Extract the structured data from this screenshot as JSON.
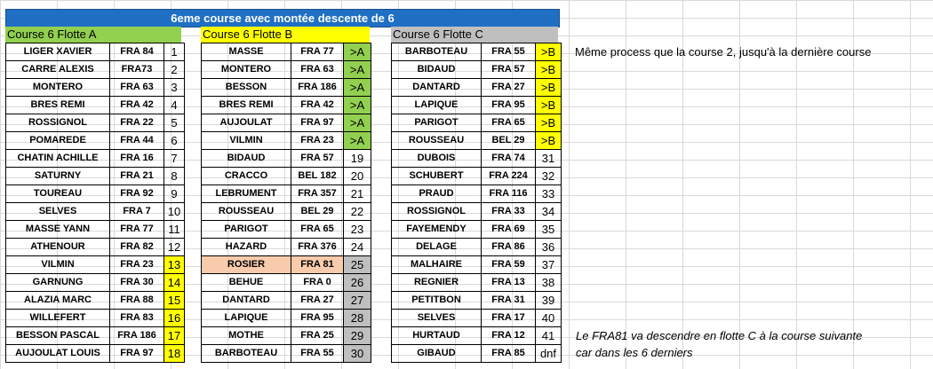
{
  "title": "6eme course avec montée descente de 6",
  "fleets": {
    "A": {
      "header": "Course 6 Flotte A",
      "rows": [
        {
          "name": "LIGER XAVIER",
          "sail": "FRA 84",
          "rank": "1",
          "bg": ""
        },
        {
          "name": "CARRE ALEXIS",
          "sail": "FRA73",
          "rank": "2",
          "bg": ""
        },
        {
          "name": "MONTERO",
          "sail": "FRA 63",
          "rank": "3",
          "bg": ""
        },
        {
          "name": "BRES REMI",
          "sail": "FRA 42",
          "rank": "4",
          "bg": ""
        },
        {
          "name": "ROSSIGNOL",
          "sail": "FRA 22",
          "rank": "5",
          "bg": ""
        },
        {
          "name": "POMAREDE",
          "sail": "FRA 44",
          "rank": "6",
          "bg": ""
        },
        {
          "name": "CHATIN ACHILLE",
          "sail": "FRA 16",
          "rank": "7",
          "bg": ""
        },
        {
          "name": "SATURNY",
          "sail": "FRA 21",
          "rank": "8",
          "bg": ""
        },
        {
          "name": "TOUREAU",
          "sail": "FRA 92",
          "rank": "9",
          "bg": ""
        },
        {
          "name": "SELVES",
          "sail": "FRA 7",
          "rank": "10",
          "bg": ""
        },
        {
          "name": "MASSE YANN",
          "sail": "FRA 77",
          "rank": "11",
          "bg": ""
        },
        {
          "name": "ATHENOUR",
          "sail": "FRA 82",
          "rank": "12",
          "bg": ""
        },
        {
          "name": "VILMIN",
          "sail": "FRA 23",
          "rank": "13",
          "bg": "yellow"
        },
        {
          "name": "GARNUNG",
          "sail": "FRA 30",
          "rank": "14",
          "bg": "yellow"
        },
        {
          "name": "ALAZIA MARC",
          "sail": "FRA 88",
          "rank": "15",
          "bg": "yellow"
        },
        {
          "name": "WILLEFERT",
          "sail": "FRA 83",
          "rank": "16",
          "bg": "yellow"
        },
        {
          "name": "BESSON PASCAL",
          "sail": "FRA 186",
          "rank": "17",
          "bg": "yellow"
        },
        {
          "name": "AUJOULAT LOUIS",
          "sail": "FRA 97",
          "rank": "18",
          "bg": "yellow"
        }
      ]
    },
    "B": {
      "header": "Course 6 Flotte B",
      "rows": [
        {
          "name": "MASSE",
          "sail": "FRA 77",
          "rank": ">A",
          "bg": "green"
        },
        {
          "name": "MONTERO",
          "sail": "FRA 63",
          "rank": ">A",
          "bg": "green"
        },
        {
          "name": "BESSON",
          "sail": "FRA 186",
          "rank": ">A",
          "bg": "green"
        },
        {
          "name": "BRES REMI",
          "sail": "FRA 42",
          "rank": ">A",
          "bg": "green"
        },
        {
          "name": "AUJOULAT",
          "sail": "FRA 97",
          "rank": ">A",
          "bg": "green"
        },
        {
          "name": "VILMIN",
          "sail": "FRA 23",
          "rank": ">A",
          "bg": "green"
        },
        {
          "name": "BIDAUD",
          "sail": "FRA 57",
          "rank": "19",
          "bg": ""
        },
        {
          "name": "CRACCO",
          "sail": "BEL 182",
          "rank": "20",
          "bg": ""
        },
        {
          "name": "LEBRUMENT",
          "sail": "FRA 357",
          "rank": "21",
          "bg": ""
        },
        {
          "name": "ROUSSEAU",
          "sail": "BEL 29",
          "rank": "22",
          "bg": ""
        },
        {
          "name": "PARIGOT",
          "sail": "FRA 65",
          "rank": "23",
          "bg": ""
        },
        {
          "name": "HAZARD",
          "sail": "FRA 376",
          "rank": "24",
          "bg": ""
        },
        {
          "name": "ROSIER",
          "sail": "FRA 81",
          "rank": "25",
          "bg": "gray",
          "rowbg": "peach"
        },
        {
          "name": "BEHUE",
          "sail": "FRA 0",
          "rank": "26",
          "bg": "gray"
        },
        {
          "name": "DANTARD",
          "sail": "FRA 27",
          "rank": "27",
          "bg": "gray"
        },
        {
          "name": "LAPIQUE",
          "sail": "FRA 95",
          "rank": "28",
          "bg": "gray"
        },
        {
          "name": "MOTHE",
          "sail": "FRA 25",
          "rank": "29",
          "bg": "gray"
        },
        {
          "name": "BARBOTEAU",
          "sail": "FRA 55",
          "rank": "30",
          "bg": "gray"
        }
      ]
    },
    "C": {
      "header": "Course 6 Flotte C",
      "rows": [
        {
          "name": "BARBOTEAU",
          "sail": "FRA 55",
          "rank": ">B",
          "bg": "yellow"
        },
        {
          "name": "BIDAUD",
          "sail": "FRA 57",
          "rank": ">B",
          "bg": "yellow"
        },
        {
          "name": "DANTARD",
          "sail": "FRA 27",
          "rank": ">B",
          "bg": "yellow"
        },
        {
          "name": "LAPIQUE",
          "sail": "FRA 95",
          "rank": ">B",
          "bg": "yellow"
        },
        {
          "name": "PARIGOT",
          "sail": "FRA 65",
          "rank": ">B",
          "bg": "yellow"
        },
        {
          "name": "ROUSSEAU",
          "sail": "BEL 29",
          "rank": ">B",
          "bg": "yellow"
        },
        {
          "name": "DUBOIS",
          "sail": "FRA 74",
          "rank": "31",
          "bg": ""
        },
        {
          "name": "SCHUBERT",
          "sail": "FRA 224",
          "rank": "32",
          "bg": ""
        },
        {
          "name": "PRAUD",
          "sail": "FRA 116",
          "rank": "33",
          "bg": ""
        },
        {
          "name": "ROSSIGNOL",
          "sail": "FRA 33",
          "rank": "34",
          "bg": ""
        },
        {
          "name": "FAYEMENDY",
          "sail": "FRA 69",
          "rank": "35",
          "bg": ""
        },
        {
          "name": "DELAGE",
          "sail": "FRA 86",
          "rank": "36",
          "bg": ""
        },
        {
          "name": "MALHAIRE",
          "sail": "FRA 59",
          "rank": "37",
          "bg": ""
        },
        {
          "name": "REGNIER",
          "sail": "FRA 13",
          "rank": "38",
          "bg": ""
        },
        {
          "name": "PETITBON",
          "sail": "FRA 31",
          "rank": "39",
          "bg": ""
        },
        {
          "name": "SELVES",
          "sail": "FRA 17",
          "rank": "40",
          "bg": ""
        },
        {
          "name": "HURTAUD",
          "sail": "FRA 12",
          "rank": "41",
          "bg": ""
        },
        {
          "name": "GIBAUD",
          "sail": "FRA 85",
          "rank": "dnf",
          "bg": ""
        }
      ]
    }
  },
  "notes": {
    "process": "Même process que la course 2, jusqu'à la dernière course",
    "line1": "Le FRA81 va descendre en flotte C à la course suivante",
    "line2": "car dans les 6 derniers"
  },
  "colors": {
    "title_bg": "#1f6fc5",
    "fleetA": "#92d050",
    "fleetB": "#ffff00",
    "fleetC": "#bfbfbf",
    "highlight": "#f8cbad"
  }
}
